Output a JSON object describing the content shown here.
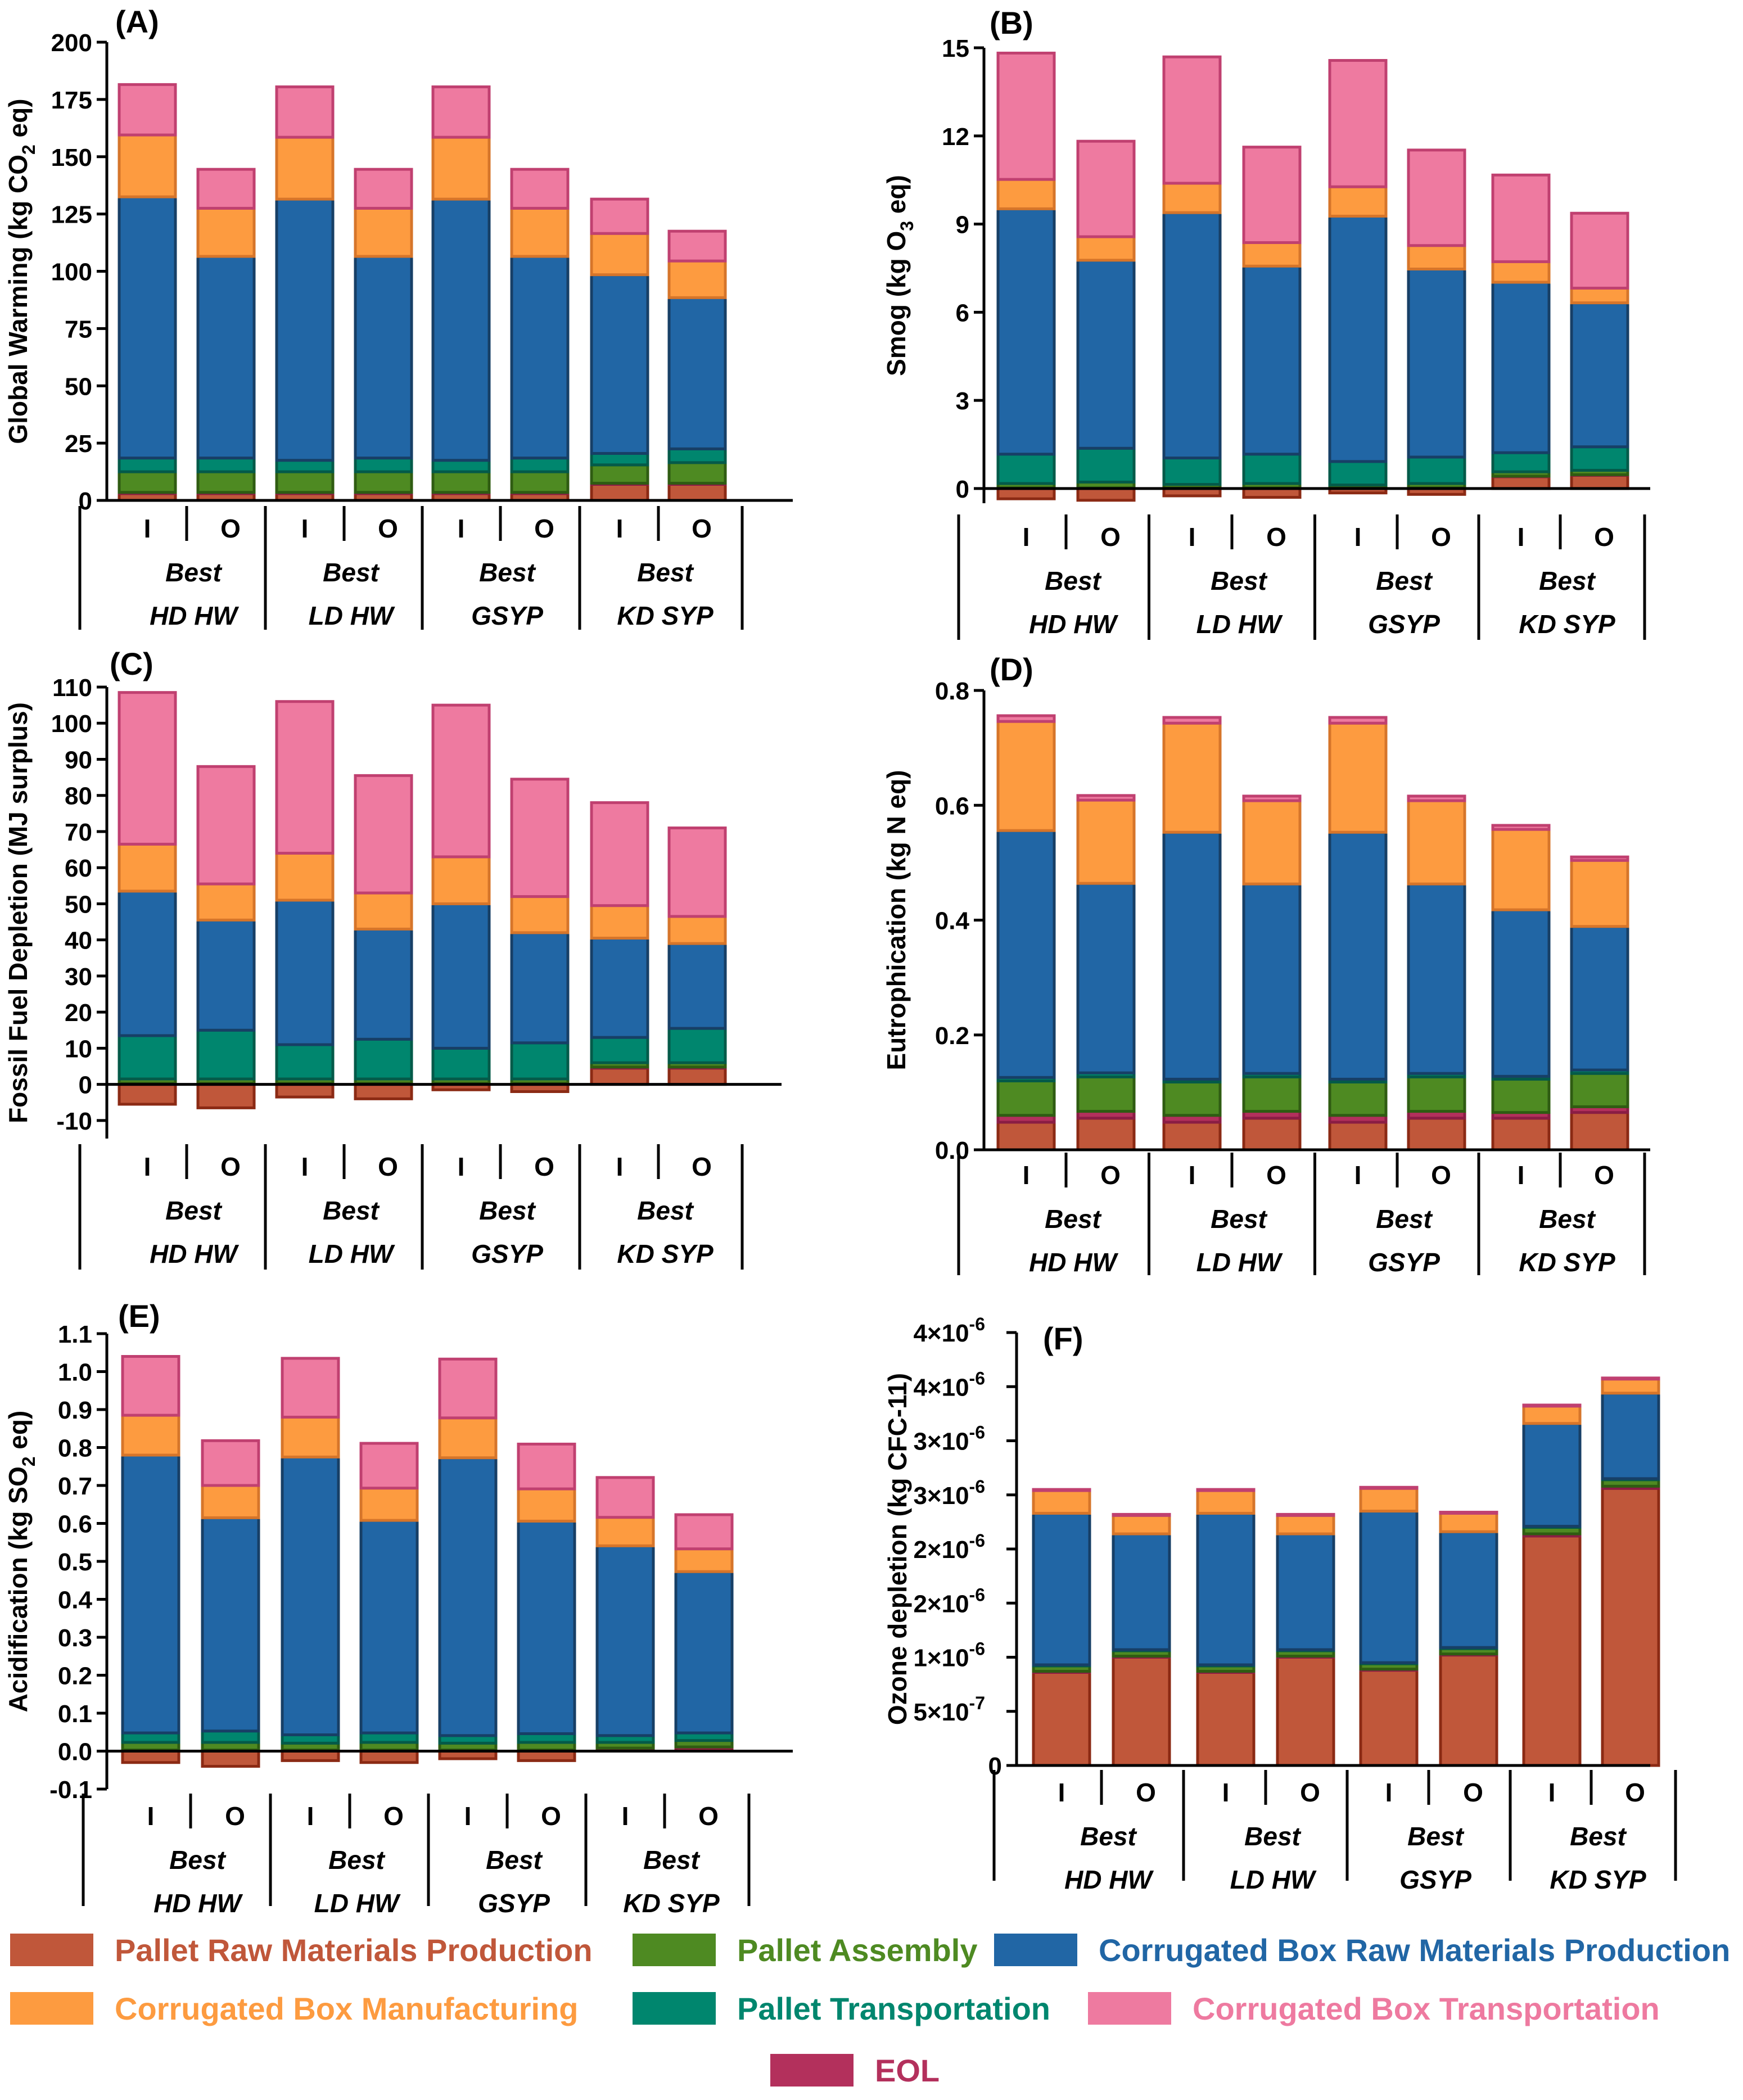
{
  "legend": [
    {
      "key": "pallet_raw",
      "label": "Pallet Raw Materials Production",
      "color": "#c0573a",
      "edge": "#8b2a14"
    },
    {
      "key": "pallet_assembly",
      "label": "Pallet Assembly",
      "color": "#4e8a22",
      "edge": "#2f5c12"
    },
    {
      "key": "box_raw",
      "label": "Corrugated Box Raw Materials Production",
      "color": "#2166a5",
      "edge": "#173f66"
    },
    {
      "key": "box_mfg",
      "label": "Corrugated Box Manufacturing",
      "color": "#fd9b40",
      "edge": "#d6752a"
    },
    {
      "key": "pallet_transport",
      "label": "Pallet Transportation",
      "color": "#00866e",
      "edge": "#045a49"
    },
    {
      "key": "box_transport",
      "label": "Corrugated Box Transportation",
      "color": "#ee7aa0",
      "edge": "#c04070"
    },
    {
      "key": "eol",
      "label": "EOL",
      "color": "#b3305c",
      "edge": "#8a1d44"
    }
  ],
  "x_axis": {
    "bar_labels": [
      "I",
      "O",
      "I",
      "O",
      "I",
      "O",
      "I",
      "O"
    ],
    "group_sublabel": "Best",
    "groups": [
      "HD HW",
      "LD HW",
      "GSYP",
      "KD SYP"
    ]
  },
  "chart_data": [
    {
      "type": "bar",
      "stacked": true,
      "panel": "(A)",
      "ylabel_main": "Global Warming (kg CO",
      "ylabel_sub": "2",
      "ylabel_tail": " eq)",
      "ylim": [
        0,
        200
      ],
      "yticks": [
        {
          "v": 0,
          "label": "0"
        },
        {
          "v": 25,
          "label": "25"
        },
        {
          "v": 50,
          "label": "50"
        },
        {
          "v": 75,
          "label": "75"
        },
        {
          "v": 100,
          "label": "100"
        },
        {
          "v": 125,
          "label": "125"
        },
        {
          "v": 150,
          "label": "150"
        },
        {
          "v": 175,
          "label": "175"
        },
        {
          "v": 200,
          "label": "200"
        }
      ],
      "series": [
        {
          "key": "pallet_raw",
          "values": [
            3,
            3,
            3,
            3,
            3,
            3,
            7,
            7
          ]
        },
        {
          "key": "eol",
          "values": [
            0.5,
            0.5,
            0.5,
            0.5,
            0.5,
            0.5,
            0.5,
            0.5
          ]
        },
        {
          "key": "pallet_assembly",
          "values": [
            9,
            9,
            9,
            9,
            9,
            9,
            8,
            9
          ]
        },
        {
          "key": "pallet_transport",
          "values": [
            6,
            6,
            5,
            6,
            5,
            6,
            5,
            6
          ]
        },
        {
          "key": "box_raw",
          "values": [
            114,
            88,
            114,
            88,
            114,
            88,
            78,
            66
          ]
        },
        {
          "key": "box_mfg",
          "values": [
            27,
            21,
            27,
            21,
            27,
            21,
            18,
            16
          ]
        },
        {
          "key": "box_transport",
          "values": [
            22,
            17,
            22,
            17,
            22,
            17,
            15,
            13
          ]
        }
      ]
    },
    {
      "type": "bar",
      "stacked": true,
      "panel": "(B)",
      "ylabel_main": "Smog (kg O",
      "ylabel_sub": "3",
      "ylabel_tail": " eq)",
      "ylim": [
        -0.5,
        15
      ],
      "yticks": [
        {
          "v": 0,
          "label": "0"
        },
        {
          "v": 3,
          "label": "3"
        },
        {
          "v": 6,
          "label": "6"
        },
        {
          "v": 9,
          "label": "9"
        },
        {
          "v": 12,
          "label": "12"
        },
        {
          "v": 15,
          "label": "15"
        }
      ],
      "series": [
        {
          "key": "pallet_raw",
          "values": [
            -0.35,
            -0.4,
            -0.25,
            -0.3,
            -0.15,
            -0.2,
            0.4,
            0.45
          ]
        },
        {
          "key": "eol",
          "values": [
            0.02,
            0.02,
            0.02,
            0.02,
            0.02,
            0.02,
            0.02,
            0.02
          ]
        },
        {
          "key": "pallet_assembly",
          "values": [
            0.15,
            0.2,
            0.12,
            0.15,
            0.1,
            0.15,
            0.15,
            0.15
          ]
        },
        {
          "key": "pallet_transport",
          "values": [
            1.0,
            1.15,
            0.9,
            1.0,
            0.8,
            0.9,
            0.65,
            0.8
          ]
        },
        {
          "key": "box_raw",
          "values": [
            8.35,
            6.4,
            8.35,
            6.4,
            8.35,
            6.4,
            5.8,
            4.9
          ]
        },
        {
          "key": "box_mfg",
          "values": [
            1.0,
            0.8,
            1.0,
            0.8,
            1.0,
            0.8,
            0.7,
            0.5
          ]
        },
        {
          "key": "box_transport",
          "values": [
            4.3,
            3.25,
            4.3,
            3.25,
            4.3,
            3.25,
            2.95,
            2.55
          ]
        }
      ]
    },
    {
      "type": "bar",
      "stacked": true,
      "panel": "(C)",
      "ylabel_main": "Fossil Fuel Depletion (MJ surplus)",
      "ylabel_sub": "",
      "ylabel_tail": "",
      "ylim": [
        -15,
        110
      ],
      "yticks": [
        {
          "v": -10,
          "label": "-10"
        },
        {
          "v": 0,
          "label": "0"
        },
        {
          "v": 10,
          "label": "10"
        },
        {
          "v": 20,
          "label": "20"
        },
        {
          "v": 30,
          "label": "30"
        },
        {
          "v": 40,
          "label": "40"
        },
        {
          "v": 50,
          "label": "50"
        },
        {
          "v": 60,
          "label": "60"
        },
        {
          "v": 70,
          "label": "70"
        },
        {
          "v": 80,
          "label": "80"
        },
        {
          "v": 90,
          "label": "90"
        },
        {
          "v": 100,
          "label": "100"
        },
        {
          "v": 110,
          "label": "110"
        }
      ],
      "series": [
        {
          "key": "pallet_raw",
          "values": [
            -5.5,
            -6.5,
            -3.5,
            -4,
            -1.5,
            -2,
            4.5,
            4.5
          ]
        },
        {
          "key": "eol",
          "values": [
            0.3,
            0.3,
            0.3,
            0.3,
            0.3,
            0.3,
            0.3,
            0.3
          ]
        },
        {
          "key": "pallet_assembly",
          "values": [
            1.2,
            1.2,
            1.2,
            1.2,
            1.2,
            1.2,
            1.2,
            1.2
          ]
        },
        {
          "key": "pallet_transport",
          "values": [
            12,
            13.5,
            9.5,
            11,
            8.5,
            10,
            7,
            9.5
          ]
        },
        {
          "key": "box_raw",
          "values": [
            40,
            30.5,
            40,
            30.5,
            40,
            30.5,
            27.5,
            23.5
          ]
        },
        {
          "key": "box_mfg",
          "values": [
            13,
            10,
            13,
            10,
            13,
            10,
            9,
            7.5
          ]
        },
        {
          "key": "box_transport",
          "values": [
            42,
            32.5,
            42,
            32.5,
            42,
            32.5,
            28.5,
            24.5
          ]
        }
      ]
    },
    {
      "type": "bar",
      "stacked": true,
      "panel": "(D)",
      "ylabel_main": "Eutrophication (kg N eq)",
      "ylabel_sub": "",
      "ylabel_tail": "",
      "ylim": [
        0,
        0.8
      ],
      "yticks": [
        {
          "v": 0,
          "label": "0.0"
        },
        {
          "v": 0.2,
          "label": "0.2"
        },
        {
          "v": 0.4,
          "label": "0.4"
        },
        {
          "v": 0.6,
          "label": "0.6"
        },
        {
          "v": 0.8,
          "label": "0.8"
        }
      ],
      "series": [
        {
          "key": "pallet_raw",
          "values": [
            0.048,
            0.055,
            0.048,
            0.055,
            0.048,
            0.055,
            0.055,
            0.065
          ]
        },
        {
          "key": "eol",
          "values": [
            0.012,
            0.012,
            0.012,
            0.012,
            0.012,
            0.012,
            0.01,
            0.01
          ]
        },
        {
          "key": "pallet_assembly",
          "values": [
            0.06,
            0.06,
            0.058,
            0.06,
            0.058,
            0.06,
            0.058,
            0.058
          ]
        },
        {
          "key": "pallet_transport",
          "values": [
            0.006,
            0.007,
            0.005,
            0.006,
            0.005,
            0.006,
            0.005,
            0.006
          ]
        },
        {
          "key": "box_raw",
          "values": [
            0.43,
            0.33,
            0.43,
            0.33,
            0.43,
            0.33,
            0.29,
            0.25
          ]
        },
        {
          "key": "box_mfg",
          "values": [
            0.19,
            0.145,
            0.19,
            0.145,
            0.19,
            0.145,
            0.14,
            0.115
          ]
        },
        {
          "key": "box_transport",
          "values": [
            0.01,
            0.008,
            0.01,
            0.008,
            0.01,
            0.008,
            0.007,
            0.006
          ]
        }
      ]
    },
    {
      "type": "bar",
      "stacked": true,
      "panel": "(E)",
      "ylabel_main": "Acidification (kg SO",
      "ylabel_sub": "2",
      "ylabel_tail": " eq)",
      "ylim": [
        -0.1,
        1.1
      ],
      "yticks": [
        {
          "v": -0.1,
          "label": "-0.1"
        },
        {
          "v": 0,
          "label": "0.0"
        },
        {
          "v": 0.1,
          "label": "0.1"
        },
        {
          "v": 0.2,
          "label": "0.2"
        },
        {
          "v": 0.3,
          "label": "0.3"
        },
        {
          "v": 0.4,
          "label": "0.4"
        },
        {
          "v": 0.5,
          "label": "0.5"
        },
        {
          "v": 0.6,
          "label": "0.6"
        },
        {
          "v": 0.7,
          "label": "0.7"
        },
        {
          "v": 0.8,
          "label": "0.8"
        },
        {
          "v": 0.9,
          "label": "0.9"
        },
        {
          "v": 1.0,
          "label": "1.0"
        },
        {
          "v": 1.1,
          "label": "1.1"
        }
      ],
      "series": [
        {
          "key": "pallet_raw",
          "values": [
            -0.03,
            -0.04,
            -0.025,
            -0.03,
            -0.02,
            -0.025,
            0.005,
            0.008
          ]
        },
        {
          "key": "eol",
          "values": [
            0.003,
            0.003,
            0.003,
            0.003,
            0.003,
            0.003,
            0.003,
            0.003
          ]
        },
        {
          "key": "pallet_assembly",
          "values": [
            0.02,
            0.02,
            0.018,
            0.02,
            0.018,
            0.02,
            0.015,
            0.017
          ]
        },
        {
          "key": "pallet_transport",
          "values": [
            0.025,
            0.03,
            0.022,
            0.025,
            0.02,
            0.023,
            0.018,
            0.02
          ]
        },
        {
          "key": "box_raw",
          "values": [
            0.732,
            0.562,
            0.732,
            0.56,
            0.732,
            0.56,
            0.5,
            0.425
          ]
        },
        {
          "key": "box_mfg",
          "values": [
            0.105,
            0.085,
            0.105,
            0.085,
            0.105,
            0.085,
            0.075,
            0.06
          ]
        },
        {
          "key": "box_transport",
          "values": [
            0.155,
            0.118,
            0.155,
            0.118,
            0.155,
            0.118,
            0.105,
            0.09
          ]
        }
      ]
    },
    {
      "type": "bar",
      "stacked": true,
      "panel": "(F)",
      "ylabel_main": "Ozone depletion (kg CFC-11)",
      "ylabel_sub": "",
      "ylabel_tail": "",
      "ylim": [
        0,
        4e-06
      ],
      "yticks": [
        {
          "v": 0,
          "label": "0"
        },
        {
          "v": 5e-07,
          "label": "5×10",
          "exp": "-7"
        },
        {
          "v": 1e-06,
          "label": "1×10",
          "exp": "-6"
        },
        {
          "v": 1.5e-06,
          "label": "2×10",
          "exp": "-6"
        },
        {
          "v": 2e-06,
          "label": "2×10",
          "exp": "-6"
        },
        {
          "v": 2.5e-06,
          "label": "3×10",
          "exp": "-6"
        },
        {
          "v": 3e-06,
          "label": "3×10",
          "exp": "-6"
        },
        {
          "v": 3.5e-06,
          "label": "4×10",
          "exp": "-6"
        },
        {
          "v": 4e-06,
          "label": "4×10",
          "exp": "-6"
        }
      ],
      "series": [
        {
          "key": "pallet_raw",
          "values": [
            8.6e-07,
            1e-06,
            8.6e-07,
            1e-06,
            8.8e-07,
            1.02e-06,
            2.12e-06,
            2.56e-06
          ]
        },
        {
          "key": "eol",
          "values": [
            1e-08,
            1e-08,
            1e-08,
            1e-08,
            1e-08,
            1e-08,
            2e-08,
            2e-08
          ]
        },
        {
          "key": "pallet_assembly",
          "values": [
            5e-08,
            5e-08,
            5e-08,
            5e-08,
            5e-08,
            5e-08,
            6e-08,
            6e-08
          ]
        },
        {
          "key": "pallet_transport",
          "values": [
            1e-08,
            1e-08,
            1e-08,
            1e-08,
            1e-08,
            1e-08,
            1e-08,
            1e-08
          ]
        },
        {
          "key": "box_raw",
          "values": [
            1.4e-06,
            1.07e-06,
            1.4e-06,
            1.07e-06,
            1.4e-06,
            1.07e-06,
            9.5e-07,
            7.9e-07
          ]
        },
        {
          "key": "box_mfg",
          "values": [
            2.1e-07,
            1.7e-07,
            2.1e-07,
            1.7e-07,
            2.1e-07,
            1.7e-07,
            1.6e-07,
            1.3e-07
          ]
        },
        {
          "key": "box_transport",
          "values": [
            1e-08,
            1e-08,
            1e-08,
            1e-08,
            1e-08,
            1e-08,
            1e-08,
            1e-08
          ]
        }
      ]
    }
  ]
}
